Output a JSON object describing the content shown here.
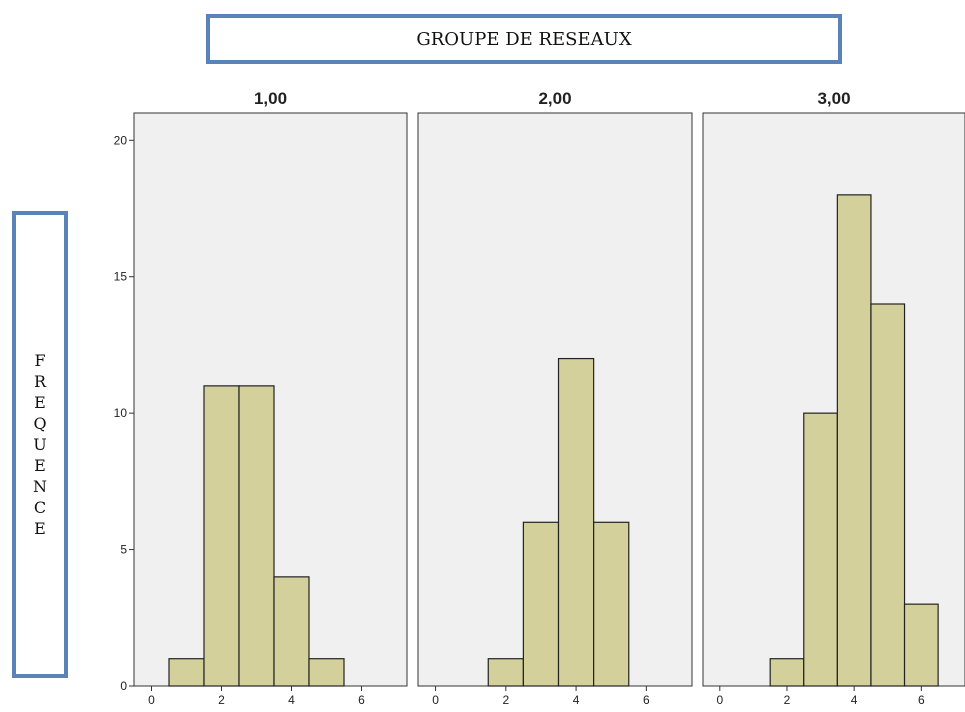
{
  "header": {
    "group_label": "GROUPE DE RESEAUX"
  },
  "y_axis_box": {
    "label": "FREQUENCE"
  },
  "chart_data": [
    {
      "type": "bar",
      "title": "1,00",
      "bins": [
        1,
        2,
        3,
        4,
        5
      ],
      "values": [
        1,
        11,
        11,
        4,
        1
      ],
      "xlim": [
        -0.5,
        7.3
      ],
      "ylim": [
        0,
        21
      ],
      "x_ticks": [
        0,
        2,
        4,
        6
      ],
      "x_tick_labels": [
        "0",
        "2",
        "4",
        "6"
      ],
      "y_ticks": [
        0,
        5,
        10,
        15,
        20
      ],
      "y_tick_labels": [
        "0",
        "5",
        "10",
        "15",
        "20"
      ]
    },
    {
      "type": "bar",
      "title": "2,00",
      "bins": [
        2,
        3,
        4,
        5
      ],
      "values": [
        1,
        6,
        12,
        6
      ],
      "xlim": [
        -0.5,
        7.3
      ],
      "ylim": [
        0,
        21
      ],
      "x_ticks": [
        0,
        2,
        4,
        6
      ],
      "x_tick_labels": [
        "0",
        "2",
        "4",
        "6"
      ]
    },
    {
      "type": "bar",
      "title": "3,00",
      "bins": [
        2,
        3,
        4,
        5,
        6
      ],
      "values": [
        1,
        10,
        18,
        14,
        3
      ],
      "xlim": [
        -0.5,
        7.3
      ],
      "ylim": [
        0,
        21
      ],
      "x_ticks": [
        0,
        2,
        4,
        6
      ],
      "x_tick_labels": [
        "0",
        "2",
        "4",
        "6"
      ]
    }
  ],
  "colors": {
    "bar_fill": "#d4d09b",
    "bar_stroke": "#222222",
    "panel_bg": "#f0f0f0",
    "frame_border": "#5b83b8"
  }
}
